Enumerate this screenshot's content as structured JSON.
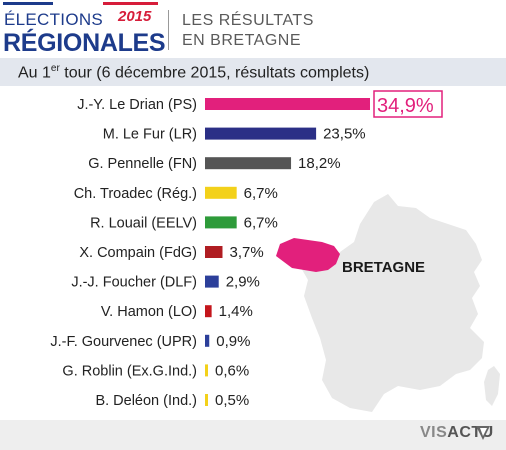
{
  "header": {
    "logo_line1": "ÉLECTIONS",
    "logo_line2": "RÉGIONALES",
    "logo_year": "2015",
    "title_line1": "LES RÉSULTATS",
    "title_line2": "EN BRETAGNE"
  },
  "subtitle": {
    "prefix": "Au 1",
    "sup": "er",
    "rest": " tour (6 décembre 2015, résultats complets)"
  },
  "map": {
    "region_label": "BRETAGNE",
    "region_color": "#e2207c",
    "country_color": "#e8e8e8"
  },
  "brand": {
    "part1": "VIS",
    "part2": "ACTU"
  },
  "chart_data": {
    "type": "bar",
    "orientation": "horizontal",
    "categories": [
      "J.-Y. Le Drian (PS)",
      "M. Le Fur (LR)",
      "G. Pennelle (FN)",
      "Ch. Troadec (Rég.)",
      "R. Louail (EELV)",
      "X. Compain (FdG)",
      "J.-J. Foucher (DLF)",
      "V. Hamon (LO)",
      "J.-F. Gourvenec (UPR)",
      "G. Roblin (Ex.G.Ind.)",
      "B. Deléon (Ind.)"
    ],
    "values": [
      34.9,
      23.5,
      18.2,
      6.7,
      6.7,
      3.7,
      2.9,
      1.4,
      0.9,
      0.6,
      0.5
    ],
    "value_labels": [
      "34,9%",
      "23,5%",
      "18,2%",
      "6,7%",
      "6,7%",
      "3,7%",
      "2,9%",
      "1,4%",
      "0,9%",
      "0,6%",
      "0,5%"
    ],
    "colors": [
      "#e2207c",
      "#2b2f86",
      "#555555",
      "#f3d11a",
      "#2e9b3a",
      "#b01d22",
      "#2c3f9a",
      "#c4161c",
      "#2c3f9a",
      "#f3d11a",
      "#f3d11a"
    ],
    "highlight_color": "#e2207c",
    "title": "",
    "xlabel": "",
    "ylabel": "",
    "xlim": [
      0,
      34.9
    ],
    "grid": false
  }
}
